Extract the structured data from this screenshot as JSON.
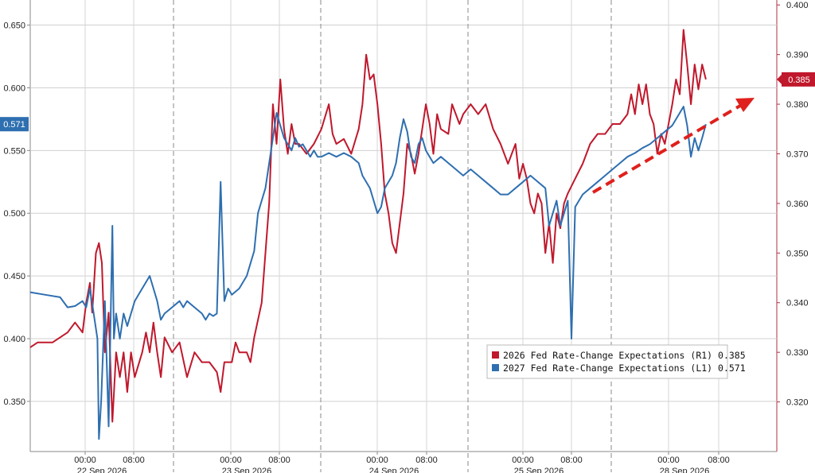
{
  "chart_data": {
    "type": "line",
    "title": "",
    "xlabel": "",
    "left_axis": {
      "min": 0.31,
      "max": 0.67,
      "ticks": [
        "0.350",
        "0.400",
        "0.450",
        "0.500",
        "0.550",
        "0.600",
        "0.650"
      ]
    },
    "right_axis": {
      "min": 0.31,
      "max": 0.401,
      "ticks": [
        "0.320",
        "0.330",
        "0.340",
        "0.350",
        "0.360",
        "0.370",
        "0.380",
        "0.390",
        "0.400"
      ]
    },
    "x_time_labels": [
      "00:00",
      "08:00",
      "00:00",
      "08:00",
      "00:00",
      "08:00",
      "00:00",
      "08:00",
      "00:00",
      "08:00"
    ],
    "day_labels": [
      "22 Sep 2026",
      "23 Sep 2026",
      "24 Sep 2026",
      "25 Sep 2026",
      "28 Sep 2026"
    ],
    "grid": true,
    "legend_position": "bottom-right",
    "series": [
      {
        "name": "2026 Fed Rate-Change Expectations (R1)",
        "legend_value": "0.385",
        "axis": "right",
        "color": "#c0182c",
        "last_value_tag": "0.385",
        "points": [
          [
            0,
            0.331
          ],
          [
            0.01,
            0.332
          ],
          [
            0.03,
            0.332
          ],
          [
            0.05,
            0.334
          ],
          [
            0.06,
            0.336
          ],
          [
            0.07,
            0.334
          ],
          [
            0.075,
            0.34
          ],
          [
            0.08,
            0.344
          ],
          [
            0.083,
            0.338
          ],
          [
            0.088,
            0.35
          ],
          [
            0.092,
            0.352
          ],
          [
            0.096,
            0.348
          ],
          [
            0.1,
            0.33
          ],
          [
            0.105,
            0.338
          ],
          [
            0.11,
            0.316
          ],
          [
            0.115,
            0.33
          ],
          [
            0.12,
            0.325
          ],
          [
            0.125,
            0.33
          ],
          [
            0.13,
            0.322
          ],
          [
            0.135,
            0.33
          ],
          [
            0.14,
            0.325
          ],
          [
            0.15,
            0.33
          ],
          [
            0.155,
            0.334
          ],
          [
            0.16,
            0.33
          ],
          [
            0.165,
            0.336
          ],
          [
            0.17,
            0.33
          ],
          [
            0.175,
            0.325
          ],
          [
            0.18,
            0.333
          ],
          [
            0.19,
            0.33
          ],
          [
            0.2,
            0.332
          ],
          [
            0.21,
            0.325
          ],
          [
            0.22,
            0.33
          ],
          [
            0.23,
            0.328
          ],
          [
            0.24,
            0.328
          ],
          [
            0.25,
            0.326
          ],
          [
            0.255,
            0.322
          ],
          [
            0.26,
            0.328
          ],
          [
            0.27,
            0.328
          ],
          [
            0.275,
            0.332
          ],
          [
            0.28,
            0.33
          ],
          [
            0.29,
            0.33
          ],
          [
            0.295,
            0.328
          ],
          [
            0.3,
            0.333
          ],
          [
            0.31,
            0.34
          ],
          [
            0.315,
            0.35
          ],
          [
            0.32,
            0.36
          ],
          [
            0.325,
            0.38
          ],
          [
            0.33,
            0.372
          ],
          [
            0.335,
            0.385
          ],
          [
            0.34,
            0.375
          ],
          [
            0.345,
            0.37
          ],
          [
            0.35,
            0.376
          ],
          [
            0.355,
            0.372
          ],
          [
            0.36,
            0.372
          ],
          [
            0.37,
            0.37
          ],
          [
            0.38,
            0.372
          ],
          [
            0.39,
            0.375
          ],
          [
            0.4,
            0.38
          ],
          [
            0.405,
            0.374
          ],
          [
            0.41,
            0.372
          ],
          [
            0.42,
            0.373
          ],
          [
            0.43,
            0.37
          ],
          [
            0.44,
            0.375
          ],
          [
            0.445,
            0.38
          ],
          [
            0.45,
            0.39
          ],
          [
            0.455,
            0.385
          ],
          [
            0.46,
            0.386
          ],
          [
            0.465,
            0.38
          ],
          [
            0.47,
            0.372
          ],
          [
            0.475,
            0.362
          ],
          [
            0.48,
            0.358
          ],
          [
            0.485,
            0.352
          ],
          [
            0.49,
            0.35
          ],
          [
            0.495,
            0.356
          ],
          [
            0.5,
            0.362
          ],
          [
            0.505,
            0.372
          ],
          [
            0.51,
            0.37
          ],
          [
            0.515,
            0.366
          ],
          [
            0.52,
            0.37
          ],
          [
            0.525,
            0.375
          ],
          [
            0.53,
            0.38
          ],
          [
            0.535,
            0.376
          ],
          [
            0.54,
            0.37
          ],
          [
            0.545,
            0.378
          ],
          [
            0.55,
            0.375
          ],
          [
            0.56,
            0.374
          ],
          [
            0.565,
            0.38
          ],
          [
            0.57,
            0.378
          ],
          [
            0.575,
            0.376
          ],
          [
            0.58,
            0.378
          ],
          [
            0.59,
            0.38
          ],
          [
            0.6,
            0.378
          ],
          [
            0.61,
            0.38
          ],
          [
            0.62,
            0.375
          ],
          [
            0.63,
            0.372
          ],
          [
            0.635,
            0.37
          ],
          [
            0.64,
            0.368
          ],
          [
            0.645,
            0.37
          ],
          [
            0.65,
            0.372
          ],
          [
            0.655,
            0.365
          ],
          [
            0.66,
            0.368
          ],
          [
            0.665,
            0.365
          ],
          [
            0.67,
            0.36
          ],
          [
            0.675,
            0.358
          ],
          [
            0.68,
            0.362
          ],
          [
            0.685,
            0.36
          ],
          [
            0.69,
            0.35
          ],
          [
            0.695,
            0.356
          ],
          [
            0.7,
            0.348
          ],
          [
            0.705,
            0.358
          ],
          [
            0.71,
            0.355
          ],
          [
            0.715,
            0.36
          ],
          [
            0.72,
            0.362
          ],
          [
            0.73,
            0.365
          ],
          [
            0.74,
            0.368
          ],
          [
            0.75,
            0.372
          ],
          [
            0.76,
            0.374
          ],
          [
            0.77,
            0.374
          ],
          [
            0.78,
            0.376
          ],
          [
            0.79,
            0.376
          ],
          [
            0.8,
            0.378
          ],
          [
            0.805,
            0.382
          ],
          [
            0.81,
            0.378
          ],
          [
            0.815,
            0.384
          ],
          [
            0.82,
            0.38
          ],
          [
            0.825,
            0.384
          ],
          [
            0.83,
            0.378
          ],
          [
            0.835,
            0.376
          ],
          [
            0.84,
            0.37
          ],
          [
            0.845,
            0.374
          ],
          [
            0.85,
            0.372
          ],
          [
            0.855,
            0.376
          ],
          [
            0.86,
            0.38
          ],
          [
            0.865,
            0.385
          ],
          [
            0.87,
            0.382
          ],
          [
            0.875,
            0.395
          ],
          [
            0.88,
            0.388
          ],
          [
            0.885,
            0.38
          ],
          [
            0.89,
            0.388
          ],
          [
            0.895,
            0.383
          ],
          [
            0.9,
            0.388
          ],
          [
            0.905,
            0.385
          ]
        ]
      },
      {
        "name": "2027 Fed Rate-Change Expectations (L1)",
        "legend_value": "0.571",
        "axis": "left",
        "color": "#2e6fb0",
        "last_value_tag": "0.571",
        "points": [
          [
            0,
            0.437
          ],
          [
            0.02,
            0.435
          ],
          [
            0.04,
            0.433
          ],
          [
            0.05,
            0.425
          ],
          [
            0.06,
            0.426
          ],
          [
            0.07,
            0.43
          ],
          [
            0.075,
            0.425
          ],
          [
            0.08,
            0.44
          ],
          [
            0.085,
            0.42
          ],
          [
            0.09,
            0.4
          ],
          [
            0.092,
            0.32
          ],
          [
            0.095,
            0.35
          ],
          [
            0.1,
            0.43
          ],
          [
            0.105,
            0.33
          ],
          [
            0.11,
            0.49
          ],
          [
            0.112,
            0.4
          ],
          [
            0.115,
            0.42
          ],
          [
            0.12,
            0.4
          ],
          [
            0.125,
            0.42
          ],
          [
            0.13,
            0.41
          ],
          [
            0.135,
            0.42
          ],
          [
            0.14,
            0.43
          ],
          [
            0.145,
            0.435
          ],
          [
            0.15,
            0.44
          ],
          [
            0.155,
            0.445
          ],
          [
            0.16,
            0.45
          ],
          [
            0.165,
            0.44
          ],
          [
            0.17,
            0.43
          ],
          [
            0.175,
            0.415
          ],
          [
            0.18,
            0.42
          ],
          [
            0.19,
            0.425
          ],
          [
            0.2,
            0.43
          ],
          [
            0.205,
            0.425
          ],
          [
            0.21,
            0.43
          ],
          [
            0.22,
            0.425
          ],
          [
            0.23,
            0.42
          ],
          [
            0.235,
            0.415
          ],
          [
            0.24,
            0.42
          ],
          [
            0.245,
            0.418
          ],
          [
            0.25,
            0.42
          ],
          [
            0.255,
            0.525
          ],
          [
            0.26,
            0.43
          ],
          [
            0.265,
            0.44
          ],
          [
            0.27,
            0.435
          ],
          [
            0.28,
            0.44
          ],
          [
            0.29,
            0.45
          ],
          [
            0.295,
            0.46
          ],
          [
            0.3,
            0.47
          ],
          [
            0.305,
            0.5
          ],
          [
            0.31,
            0.51
          ],
          [
            0.315,
            0.52
          ],
          [
            0.32,
            0.54
          ],
          [
            0.325,
            0.56
          ],
          [
            0.33,
            0.58
          ],
          [
            0.335,
            0.57
          ],
          [
            0.34,
            0.56
          ],
          [
            0.345,
            0.555
          ],
          [
            0.35,
            0.55
          ],
          [
            0.355,
            0.56
          ],
          [
            0.36,
            0.553
          ],
          [
            0.365,
            0.555
          ],
          [
            0.37,
            0.55
          ],
          [
            0.375,
            0.545
          ],
          [
            0.38,
            0.55
          ],
          [
            0.385,
            0.545
          ],
          [
            0.39,
            0.545
          ],
          [
            0.4,
            0.548
          ],
          [
            0.41,
            0.545
          ],
          [
            0.42,
            0.548
          ],
          [
            0.43,
            0.545
          ],
          [
            0.44,
            0.54
          ],
          [
            0.445,
            0.53
          ],
          [
            0.45,
            0.525
          ],
          [
            0.455,
            0.52
          ],
          [
            0.46,
            0.51
          ],
          [
            0.465,
            0.5
          ],
          [
            0.47,
            0.505
          ],
          [
            0.475,
            0.52
          ],
          [
            0.48,
            0.525
          ],
          [
            0.485,
            0.53
          ],
          [
            0.49,
            0.54
          ],
          [
            0.495,
            0.56
          ],
          [
            0.5,
            0.575
          ],
          [
            0.505,
            0.565
          ],
          [
            0.51,
            0.545
          ],
          [
            0.515,
            0.54
          ],
          [
            0.52,
            0.555
          ],
          [
            0.525,
            0.56
          ],
          [
            0.53,
            0.55
          ],
          [
            0.535,
            0.545
          ],
          [
            0.54,
            0.54
          ],
          [
            0.55,
            0.545
          ],
          [
            0.56,
            0.54
          ],
          [
            0.57,
            0.535
          ],
          [
            0.58,
            0.53
          ],
          [
            0.59,
            0.535
          ],
          [
            0.6,
            0.53
          ],
          [
            0.61,
            0.525
          ],
          [
            0.62,
            0.52
          ],
          [
            0.63,
            0.515
          ],
          [
            0.64,
            0.515
          ],
          [
            0.65,
            0.52
          ],
          [
            0.66,
            0.525
          ],
          [
            0.67,
            0.53
          ],
          [
            0.68,
            0.525
          ],
          [
            0.69,
            0.52
          ],
          [
            0.695,
            0.49
          ],
          [
            0.7,
            0.5
          ],
          [
            0.705,
            0.51
          ],
          [
            0.71,
            0.49
          ],
          [
            0.715,
            0.5
          ],
          [
            0.72,
            0.51
          ],
          [
            0.725,
            0.4
          ],
          [
            0.73,
            0.505
          ],
          [
            0.74,
            0.515
          ],
          [
            0.75,
            0.52
          ],
          [
            0.76,
            0.525
          ],
          [
            0.77,
            0.53
          ],
          [
            0.78,
            0.535
          ],
          [
            0.79,
            0.54
          ],
          [
            0.8,
            0.545
          ],
          [
            0.81,
            0.548
          ],
          [
            0.82,
            0.552
          ],
          [
            0.83,
            0.555
          ],
          [
            0.84,
            0.56
          ],
          [
            0.85,
            0.565
          ],
          [
            0.86,
            0.57
          ],
          [
            0.87,
            0.58
          ],
          [
            0.875,
            0.585
          ],
          [
            0.88,
            0.57
          ],
          [
            0.885,
            0.545
          ],
          [
            0.89,
            0.56
          ],
          [
            0.895,
            0.55
          ],
          [
            0.9,
            0.56
          ],
          [
            0.905,
            0.571
          ]
        ]
      }
    ],
    "annotation": {
      "type": "dashed-arrow",
      "color": "#e0201c"
    }
  }
}
